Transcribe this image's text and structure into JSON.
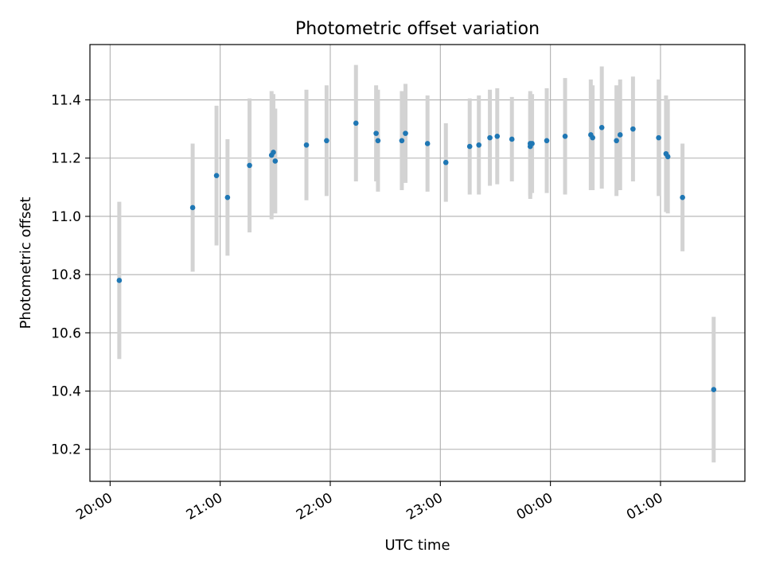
{
  "chart_data": {
    "type": "scatter",
    "title": "Photometric offset variation",
    "xlabel": "UTC time",
    "ylabel": "Photometric offset",
    "x_tick_labels": [
      "20:00",
      "21:00",
      "22:00",
      "23:00",
      "00:00",
      "01:00"
    ],
    "y_tick_labels": [
      "10.2",
      "10.4",
      "10.6",
      "10.8",
      "11.0",
      "11.2",
      "11.4"
    ],
    "y_ticks": [
      10.2,
      10.4,
      10.6,
      10.8,
      11.0,
      11.2,
      11.4
    ],
    "x_ticks_minutes": [
      0,
      60,
      120,
      180,
      240,
      300
    ],
    "xlim_minutes": [
      -11,
      346
    ],
    "ylim": [
      10.09,
      11.59
    ],
    "grid": true,
    "point_color": "#1f77b4",
    "errorbar_color": "#d3d3d3",
    "series": [
      {
        "x": [
          "20:05",
          "20:45",
          "20:58",
          "21:04",
          "21:16",
          "21:28",
          "21:29",
          "21:30",
          "21:47",
          "21:58",
          "22:14",
          "22:25",
          "22:26",
          "22:39",
          "22:41",
          "22:53",
          "23:03",
          "23:16",
          "23:21",
          "23:27",
          "23:31",
          "23:39",
          "23:49",
          "23:49",
          "23:50",
          "23:58",
          "24:08",
          "24:22",
          "24:23",
          "24:28",
          "24:36",
          "24:38",
          "24:45",
          "24:59",
          "25:03",
          "25:04",
          "25:12",
          "25:29"
        ],
        "y": [
          10.78,
          11.03,
          11.14,
          11.065,
          11.175,
          11.21,
          11.22,
          11.19,
          11.245,
          11.26,
          11.32,
          11.285,
          11.26,
          11.26,
          11.285,
          11.25,
          11.185,
          11.24,
          11.245,
          11.27,
          11.275,
          11.265,
          11.25,
          11.24,
          11.25,
          11.26,
          11.275,
          11.28,
          11.27,
          11.305,
          11.26,
          11.28,
          11.3,
          11.27,
          11.215,
          11.205,
          11.065,
          10.405
        ],
        "yerr": [
          0.27,
          0.22,
          0.24,
          0.2,
          0.23,
          0.22,
          0.2,
          0.18,
          0.19,
          0.19,
          0.2,
          0.165,
          0.175,
          0.17,
          0.17,
          0.165,
          0.135,
          0.165,
          0.17,
          0.165,
          0.165,
          0.145,
          0.18,
          0.18,
          0.17,
          0.18,
          0.2,
          0.19,
          0.18,
          0.21,
          0.19,
          0.19,
          0.18,
          0.2,
          0.2,
          0.195,
          0.185,
          0.25
        ]
      }
    ]
  }
}
